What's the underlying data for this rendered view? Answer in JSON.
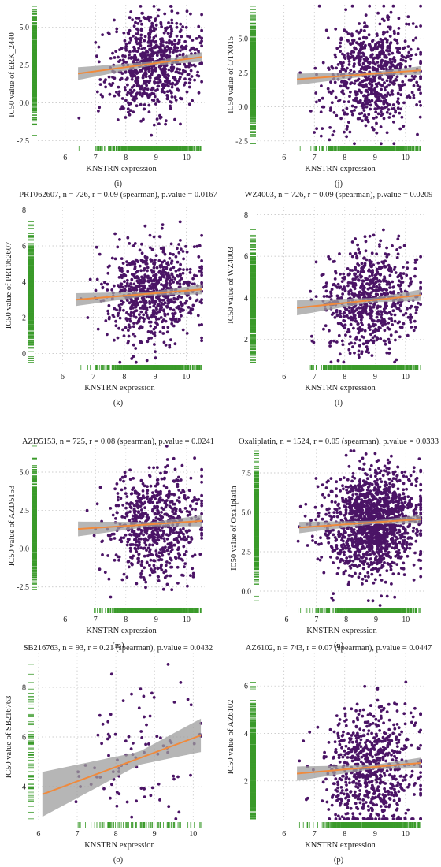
{
  "colors": {
    "points": "#4b1466",
    "fit_line": "#f08a3c",
    "ci_band": "#9e9e9e",
    "rug": "#3a9a2a",
    "grid": "#bfbfbf"
  },
  "chart_data": [
    {
      "type": "scatter",
      "label": "(i)",
      "title": "",
      "xlabel": "KNSTRN expression",
      "ylabel": "IC50 value of ERK_2440",
      "xlim": [
        5.1,
        10.6
      ],
      "ylim": [
        -2.8,
        6.5
      ],
      "xticks": [
        6,
        7,
        8,
        9,
        10
      ],
      "yticks": [
        -2.5,
        0.0,
        2.5,
        5.0
      ],
      "ytick_labels": [
        "-2.5",
        "0.0",
        "2.5",
        "5.0"
      ],
      "grid": true,
      "n": 726,
      "fit": {
        "intercept": 0.2,
        "slope": 0.27
      },
      "ci_half_width": 0.35,
      "y_center": 2.6,
      "y_spread": 1.6,
      "x_center": 8.9,
      "x_spread": 0.75
    },
    {
      "type": "scatter",
      "label": "(j)",
      "title": "",
      "xlabel": "KNSTRN expression",
      "ylabel": "IC50 value of OTX015",
      "xlim": [
        5.1,
        10.6
      ],
      "ylim": [
        -2.8,
        7.5
      ],
      "xticks": [
        6,
        7,
        8,
        9,
        10
      ],
      "yticks": [
        -2.5,
        0.0,
        2.5,
        5.0
      ],
      "ytick_labels": [
        "-2.5",
        "0.0",
        "2.5",
        "5.0"
      ],
      "grid": true,
      "n": 726,
      "fit": {
        "intercept": 1.0,
        "slope": 0.16
      },
      "ci_half_width": 0.35,
      "y_center": 2.3,
      "y_spread": 2.0,
      "x_center": 8.9,
      "x_spread": 0.75
    },
    {
      "type": "scatter",
      "label": "(k)",
      "title": "PRT062607, n = 726, r = 0.09 (spearman), p.value = 0.0167",
      "xlabel": "KNSTRN expression",
      "ylabel": "IC50 value of PRT062607",
      "xlim": [
        5.1,
        10.6
      ],
      "ylim": [
        -0.6,
        8.2
      ],
      "xticks": [
        6,
        7,
        8,
        9,
        10
      ],
      "yticks": [
        0,
        2,
        4,
        6,
        8
      ],
      "ytick_labels": [
        "0",
        "2",
        "4",
        "6",
        "8"
      ],
      "grid": true,
      "n": 726,
      "fit": {
        "intercept": 2.1,
        "slope": 0.14
      },
      "ci_half_width": 0.3,
      "y_center": 3.3,
      "y_spread": 1.3,
      "x_center": 8.9,
      "x_spread": 0.75
    },
    {
      "type": "scatter",
      "label": "(l)",
      "title": "WZ4003, n = 726, r = 0.09 (spearman), p.value = 0.0209",
      "xlabel": "KNSTRN expression",
      "ylabel": "IC50 value of WZ4003",
      "xlim": [
        5.1,
        10.6
      ],
      "ylim": [
        0.8,
        8.4
      ],
      "xticks": [
        6,
        7,
        8,
        9,
        10
      ],
      "yticks": [
        2,
        4,
        6,
        8
      ],
      "ytick_labels": [
        "2",
        "4",
        "6",
        "8"
      ],
      "grid": true,
      "n": 726,
      "fit": {
        "intercept": 2.55,
        "slope": 0.15
      },
      "ci_half_width": 0.3,
      "y_center": 3.8,
      "y_spread": 1.2,
      "x_center": 8.9,
      "x_spread": 0.75
    },
    {
      "type": "scatter",
      "label": "(m)",
      "title": "AZD5153, n = 725, r = 0.08 (spearman), p.value = 0.0241",
      "xlabel": "KNSTRN expression",
      "ylabel": "IC50 value of AZD5153",
      "xlim": [
        5.1,
        10.6
      ],
      "ylim": [
        -3.8,
        6.8
      ],
      "xticks": [
        6,
        7,
        8,
        9,
        10
      ],
      "yticks": [
        -2.5,
        0.0,
        2.5,
        5.0
      ],
      "ytick_labels": [
        "-2.5",
        "0.0",
        "2.5",
        "5.0"
      ],
      "grid": true,
      "n": 725,
      "fit": {
        "intercept": 0.45,
        "slope": 0.13
      },
      "ci_half_width": 0.4,
      "y_center": 1.6,
      "y_spread": 1.8,
      "x_center": 8.9,
      "x_spread": 0.75
    },
    {
      "type": "scatter",
      "label": "(n)",
      "title": "Oxaliplatin, n = 1524, r = 0.05 (spearman), p.value = 0.0333",
      "xlabel": "KNSTRN expression",
      "ylabel": "IC50 value of Oxaliplatin",
      "xlim": [
        5.1,
        10.6
      ],
      "ylim": [
        -1.0,
        9.0
      ],
      "xticks": [
        6,
        7,
        8,
        9,
        10
      ],
      "yticks": [
        0.0,
        2.5,
        5.0,
        7.5
      ],
      "ytick_labels": [
        "0.0",
        "2.5",
        "5.0",
        "7.5"
      ],
      "grid": true,
      "n": 1524,
      "fit": {
        "intercept": 3.2,
        "slope": 0.13
      },
      "ci_half_width": 0.3,
      "y_center": 4.3,
      "y_spread": 1.6,
      "x_center": 8.9,
      "x_spread": 0.75
    },
    {
      "type": "scatter",
      "label": "(o)",
      "title": "SB216763, n = 93, r = 0.21 (spearman), p.value = 0.0432",
      "xlabel": "KNSTRN expression",
      "ylabel": "IC50 value of SB216763",
      "xlim": [
        5.9,
        10.3
      ],
      "ylim": [
        2.6,
        9.4
      ],
      "xticks": [
        6,
        7,
        8,
        9,
        10
      ],
      "yticks": [
        4,
        6,
        8
      ],
      "ytick_labels": [
        "4",
        "6",
        "8"
      ],
      "grid": true,
      "n": 93,
      "fit": {
        "intercept": 0.15,
        "slope": 0.58
      },
      "ci_half_width": 0.75,
      "y_center": 5.3,
      "y_spread": 1.4,
      "x_center": 8.6,
      "x_spread": 0.8
    },
    {
      "type": "scatter",
      "label": "(p)",
      "title": "AZ6102, n = 743, r = 0.07 (spearman), p.value = 0.0447",
      "xlabel": "KNSTRN expression",
      "ylabel": "IC50 value of AZ6102",
      "xlim": [
        5.1,
        10.6
      ],
      "ylim": [
        0.3,
        7.4
      ],
      "xticks": [
        6,
        7,
        8,
        9,
        10
      ],
      "yticks": [
        2,
        4,
        6
      ],
      "ytick_labels": [
        "2",
        "4",
        "6"
      ],
      "grid": true,
      "n": 743,
      "fit": {
        "intercept": 1.6,
        "slope": 0.11
      },
      "ci_half_width": 0.25,
      "y_center": 2.6,
      "y_spread": 1.3,
      "x_center": 8.9,
      "x_spread": 0.75
    }
  ]
}
